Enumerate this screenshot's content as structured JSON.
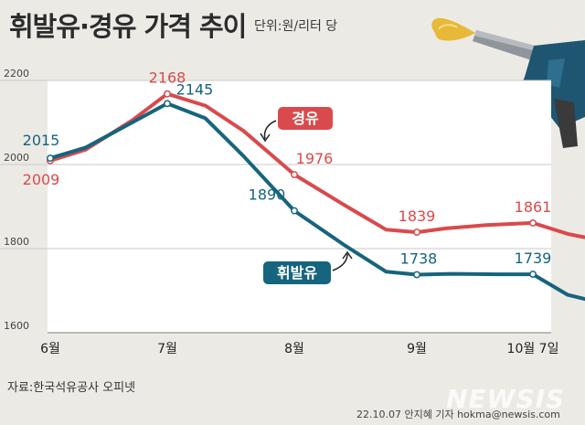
{
  "title": "휘발유·경유 가격 추이",
  "unit": "단위:원/리터 당",
  "source": "자료:한국석유공사 오피넷",
  "credit": "22.10.07 안지혜 기자 hokma@newsis.com",
  "logo": "NEWSIS",
  "colors": {
    "diesel": "#d94a4d",
    "gasoline": "#16647e",
    "background": "#eceae5",
    "plot": "#ffffff"
  },
  "chart_data": {
    "type": "line",
    "ylim": [
      1600,
      2200
    ],
    "yticks": [
      1600,
      1800,
      2000,
      2200
    ],
    "xtick_labels": [
      "6월",
      "7월",
      "8월",
      "9월",
      "10월 7일"
    ],
    "series": [
      {
        "name": "경유",
        "color": "#d94a4d",
        "points": [
          [
            0.0,
            2009
          ],
          [
            0.3,
            2035
          ],
          [
            0.7,
            2105
          ],
          [
            1.0,
            2168
          ],
          [
            1.3,
            2140
          ],
          [
            1.6,
            2080
          ],
          [
            2.0,
            1976
          ],
          [
            2.4,
            1905
          ],
          [
            2.75,
            1845
          ],
          [
            3.0,
            1839
          ],
          [
            3.25,
            1848
          ],
          [
            3.6,
            1856
          ],
          [
            4.0,
            1861
          ],
          [
            4.3,
            1835
          ],
          [
            4.66,
            1815
          ]
        ],
        "labels": [
          [
            0.0,
            2009,
            "2009"
          ],
          [
            1.0,
            2168,
            "2168"
          ],
          [
            2.0,
            1976,
            "1976"
          ],
          [
            3.0,
            1839,
            "1839"
          ],
          [
            4.0,
            1861,
            "1861"
          ],
          [
            4.66,
            1815,
            "1815"
          ]
        ]
      },
      {
        "name": "휘발유",
        "color": "#16647e",
        "points": [
          [
            0.0,
            2015
          ],
          [
            0.3,
            2040
          ],
          [
            0.7,
            2100
          ],
          [
            1.0,
            2145
          ],
          [
            1.3,
            2110
          ],
          [
            1.6,
            2020
          ],
          [
            2.0,
            1890
          ],
          [
            2.4,
            1810
          ],
          [
            2.75,
            1745
          ],
          [
            3.0,
            1738
          ],
          [
            3.3,
            1740
          ],
          [
            3.7,
            1739
          ],
          [
            4.0,
            1739
          ],
          [
            4.3,
            1690
          ],
          [
            4.66,
            1666
          ]
        ],
        "labels": [
          [
            0.0,
            2015,
            "2015"
          ],
          [
            1.0,
            2145,
            "2145"
          ],
          [
            2.0,
            1890,
            "1890"
          ],
          [
            3.0,
            1738,
            "1738"
          ],
          [
            4.0,
            1739,
            "1739"
          ],
          [
            4.66,
            1666,
            "1666"
          ]
        ]
      }
    ],
    "legend": [
      {
        "text": "경유",
        "series": "경유"
      },
      {
        "text": "휘발유",
        "series": "휘발유"
      }
    ]
  }
}
